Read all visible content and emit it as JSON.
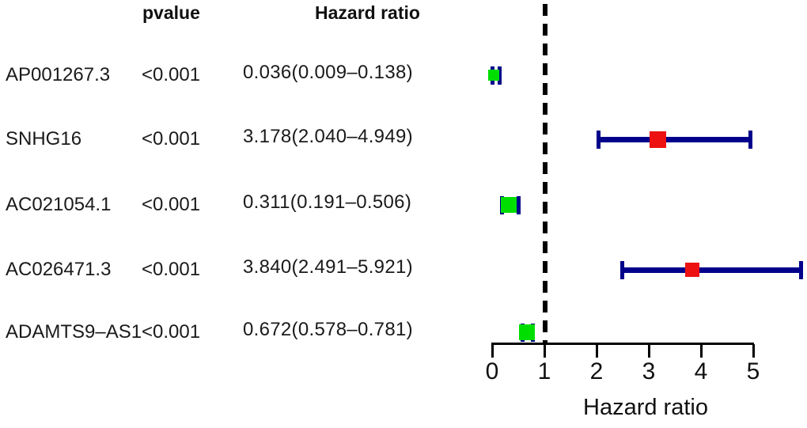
{
  "header": {
    "pvalue": "pvalue",
    "hazard_ratio": "Hazard ratio"
  },
  "chart_data": {
    "type": "forest",
    "description": "Univariate Cox forest plot of five lncRNAs",
    "columns": [
      "gene",
      "pvalue",
      "hazard_ratio_ci"
    ],
    "rows": [
      {
        "gene": "AP001267.3",
        "pvalue": "<0.001",
        "hr_text": "0.036(0.009–0.138)",
        "hr": 0.036,
        "ci_low": 0.009,
        "ci_high": 0.138,
        "box_color": "green"
      },
      {
        "gene": "SNHG16",
        "pvalue": "<0.001",
        "hr_text": "3.178(2.040–4.949)",
        "hr": 3.178,
        "ci_low": 2.04,
        "ci_high": 4.949,
        "box_color": "red"
      },
      {
        "gene": "AC021054.1",
        "pvalue": "<0.001",
        "hr_text": "0.311(0.191–0.506)",
        "hr": 0.311,
        "ci_low": 0.191,
        "ci_high": 0.506,
        "box_color": "green"
      },
      {
        "gene": "AC026471.3",
        "pvalue": "<0.001",
        "hr_text": "3.840(2.491–5.921)",
        "hr": 3.84,
        "ci_low": 2.491,
        "ci_high": 5.921,
        "box_color": "red"
      },
      {
        "gene": "ADAMTS9–AS1",
        "pvalue": "<0.001",
        "hr_text": "0.672(0.578–0.781)",
        "hr": 0.672,
        "ci_low": 0.578,
        "ci_high": 0.781,
        "box_color": "green"
      }
    ],
    "x_ticks": [
      0,
      1,
      2,
      3,
      4,
      5
    ],
    "xlim": [
      0,
      5
    ],
    "reference_line": 1,
    "xlabel": "Hazard ratio",
    "grid": false,
    "legend": null
  },
  "colors": {
    "ci_line": "#00008B",
    "box_green": "#00DE00",
    "box_red": "#ED1111",
    "reference_line": "#000000",
    "axis": "#000000",
    "text": "#1A1A1A"
  }
}
